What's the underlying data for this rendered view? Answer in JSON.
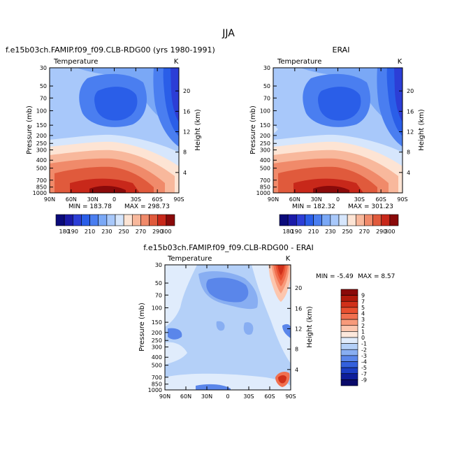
{
  "figure_title": "JJA",
  "chart_data": [
    {
      "type": "heatmap",
      "title": "f.e15b03ch.FAMIP.f09_f09.CLB-RDG00 (yrs 1980-1991)",
      "variable": "Temperature",
      "units": "K",
      "xlabel": "",
      "ylabel": "Pressure (mb)",
      "right_label": "Height (km)",
      "x_ticks": [
        "90N",
        "60N",
        "30N",
        "0",
        "30S",
        "60S",
        "90S"
      ],
      "pressure_ticks": [
        30,
        50,
        70,
        100,
        150,
        200,
        250,
        300,
        400,
        500,
        700,
        850,
        1000
      ],
      "pressure_range": [
        30,
        1000
      ],
      "height_ticks": [
        4,
        8,
        12,
        16,
        20
      ],
      "min_label": "MIN = 183.78",
      "max_label": "MAX = 298.73",
      "min": 183.78,
      "max": 298.73,
      "colorbar_levels": [
        "180",
        "190",
        "200",
        "210",
        "220",
        "230",
        "240",
        "250",
        "260",
        "270",
        "280",
        "290",
        "300"
      ],
      "colorbar_labels": [
        "180",
        "190",
        "210",
        "230",
        "250",
        "270",
        "290",
        "300"
      ],
      "colorbar_colors": [
        "#0a0a7a",
        "#1a1aa8",
        "#2c3ed6",
        "#2a5ee8",
        "#4a7ef0",
        "#7aa8f6",
        "#a8c8fa",
        "#d6e6fc",
        "#fde4d4",
        "#f8b89c",
        "#f08a6a",
        "#e05a3c",
        "#c8281a",
        "#8a0a0a"
      ]
    },
    {
      "type": "heatmap",
      "title": "ERAI",
      "variable": "Temperature",
      "units": "K",
      "ylabel": "Pressure (mb)",
      "right_label": "Height (km)",
      "x_ticks": [
        "90N",
        "60N",
        "30N",
        "0",
        "30S",
        "60S",
        "90S"
      ],
      "pressure_ticks": [
        30,
        50,
        70,
        100,
        150,
        200,
        250,
        300,
        400,
        500,
        700,
        850,
        1000
      ],
      "pressure_range": [
        30,
        1000
      ],
      "height_ticks": [
        4,
        8,
        12,
        16,
        20
      ],
      "min_label": "MIN = 182.32",
      "max_label": "MAX = 301.23",
      "min": 182.32,
      "max": 301.23,
      "colorbar_levels": [
        "180",
        "190",
        "200",
        "210",
        "220",
        "230",
        "240",
        "250",
        "260",
        "270",
        "280",
        "290",
        "300"
      ],
      "colorbar_labels": [
        "180",
        "190",
        "210",
        "230",
        "250",
        "270",
        "290",
        "300"
      ],
      "colorbar_colors": [
        "#0a0a7a",
        "#1a1aa8",
        "#2c3ed6",
        "#2a5ee8",
        "#4a7ef0",
        "#7aa8f6",
        "#a8c8fa",
        "#d6e6fc",
        "#fde4d4",
        "#f8b89c",
        "#f08a6a",
        "#e05a3c",
        "#c8281a",
        "#8a0a0a"
      ]
    },
    {
      "type": "heatmap",
      "title": "f.e15b03ch.FAMIP.f09_f09.CLB-RDG00 - ERAI",
      "variable": "Temperature",
      "units": "K",
      "ylabel": "Pressure (mb)",
      "right_label": "Height (km)",
      "x_ticks": [
        "90N",
        "60N",
        "30N",
        "0",
        "30S",
        "60S",
        "90S"
      ],
      "pressure_ticks": [
        30,
        50,
        70,
        100,
        150,
        200,
        250,
        300,
        400,
        500,
        700,
        850,
        1000
      ],
      "pressure_range": [
        30,
        1000
      ],
      "height_ticks": [
        4,
        8,
        12,
        16,
        20
      ],
      "min_label": "MIN = -5.49",
      "max_label": "MAX = 8.57",
      "min": -5.49,
      "max": 8.57,
      "colorbar_levels": [
        "9",
        "7",
        "5",
        "4",
        "3",
        "2",
        "1",
        "0",
        "-1",
        "-2",
        "-3",
        "-4",
        "-5",
        "-7",
        "-9"
      ],
      "colorbar_colors": [
        "#8a0a0a",
        "#b01a0c",
        "#d0301a",
        "#e85030",
        "#f07050",
        "#f89a7a",
        "#fcc6ae",
        "#fde8dc",
        "#e0ecfc",
        "#b4d0f8",
        "#88aef2",
        "#5a86ea",
        "#3460dc",
        "#1c3ec4",
        "#0e1e9a",
        "#0a0a6a"
      ]
    }
  ]
}
